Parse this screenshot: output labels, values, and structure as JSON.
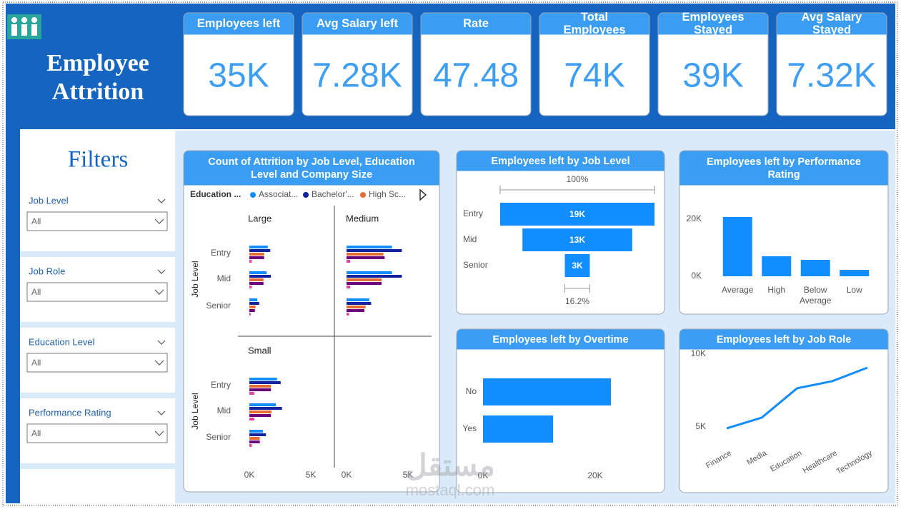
{
  "header": {
    "title_lines": [
      "Employee",
      "Attrition"
    ]
  },
  "kpis": [
    {
      "label": "Employees left",
      "value": "35K"
    },
    {
      "label": "Avg Salary left",
      "value": "7.28K"
    },
    {
      "label": "Rate",
      "value": "47.48"
    },
    {
      "label": "Total Employees",
      "value": "74K"
    },
    {
      "label": "Employees Stayed",
      "value": "39K"
    },
    {
      "label": "Avg Salary Stayed",
      "value": "7.32K"
    }
  ],
  "filters": {
    "title": "Filters",
    "items": [
      {
        "label": "Job Level",
        "value": "All"
      },
      {
        "label": "Job Role",
        "value": "All"
      },
      {
        "label": "Education Level",
        "value": "All"
      },
      {
        "label": "Performance Rating",
        "value": "All"
      }
    ]
  },
  "watermark": [
    "مستقل",
    "mostaql.com"
  ],
  "chart_data": [
    {
      "type": "small-multiples-bar",
      "title": "Count of Attrition by Job Level, Education Level and Company Size",
      "legend_title": "Education ...",
      "panels": [
        "Large",
        "Medium",
        "Small"
      ],
      "categories": [
        "Entry",
        "Mid",
        "Senior"
      ],
      "ylabel": "Job Level",
      "xlim": [
        0,
        5000
      ],
      "xticks": [
        {
          "value": 0,
          "label": "0K"
        },
        {
          "value": 5000,
          "label": "5K"
        }
      ],
      "series": [
        {
          "name": "Associat...",
          "color": "#118dff",
          "values": [
            [
              1500,
              1400,
              650
            ],
            [
              3700,
              3700,
              1850
            ],
            [
              2250,
              2150,
              1100
            ]
          ]
        },
        {
          "name": "Bachelor'...",
          "color": "#12239e",
          "values": [
            [
              1700,
              1750,
              800
            ],
            [
              4500,
              4500,
              2000
            ],
            [
              2550,
              2650,
              1350
            ]
          ]
        },
        {
          "name": "High Sc...",
          "color": "#e66c37",
          "values": [
            [
              1200,
              1150,
              500
            ],
            [
              3000,
              2850,
              1550
            ],
            [
              1750,
              1800,
              850
            ]
          ]
        },
        {
          "color": "#6b007b",
          "values": [
            [
              1200,
              1150,
              450
            ],
            [
              3100,
              2850,
              1450
            ],
            [
              1750,
              1750,
              850
            ]
          ]
        },
        {
          "color": "#e044a7",
          "values": [
            [
              200,
              200,
              100
            ],
            [
              300,
              300,
              200
            ],
            [
              400,
              400,
              200
            ]
          ]
        }
      ]
    },
    {
      "type": "funnel",
      "title": "Employees left by Job Level",
      "categories": [
        "Entry",
        "Mid",
        "Senior"
      ],
      "values": [
        18700,
        13300,
        3030
      ],
      "value_labels": [
        "19K",
        "13K",
        "3K"
      ],
      "color": "#118dff",
      "annotations": [
        "100%",
        "16.2%"
      ]
    },
    {
      "type": "bar",
      "title": "Employees left by Performance Rating",
      "categories": [
        "Average",
        "High",
        "Below Average",
        "Low"
      ],
      "values": [
        20750,
        7000,
        5750,
        2250
      ],
      "color": "#118dff",
      "ylim": [
        0,
        22000
      ],
      "yticks": [
        {
          "value": 0,
          "label": "0K"
        },
        {
          "value": 20000,
          "label": "20K"
        }
      ]
    },
    {
      "type": "hbar",
      "title": "Employees left by Overtime",
      "categories": [
        "No",
        "Yes"
      ],
      "values": [
        22800,
        12500
      ],
      "color": "#118dff",
      "xlim": [
        0,
        25000
      ],
      "xticks": [
        {
          "value": 0,
          "label": "0K"
        },
        {
          "value": 20000,
          "label": "20K"
        }
      ]
    },
    {
      "type": "line",
      "title": "Employees left by Job Role",
      "categories": [
        "Finance",
        "Media",
        "Education",
        "Healthcare",
        "Technology"
      ],
      "values": [
        4900,
        5640,
        7650,
        8140,
        9070
      ],
      "color": "#118dff",
      "ylim": [
        4500,
        10000
      ],
      "yticks": [
        {
          "value": 5000,
          "label": "5K"
        },
        {
          "value": 10000,
          "label": "10K"
        }
      ]
    }
  ]
}
